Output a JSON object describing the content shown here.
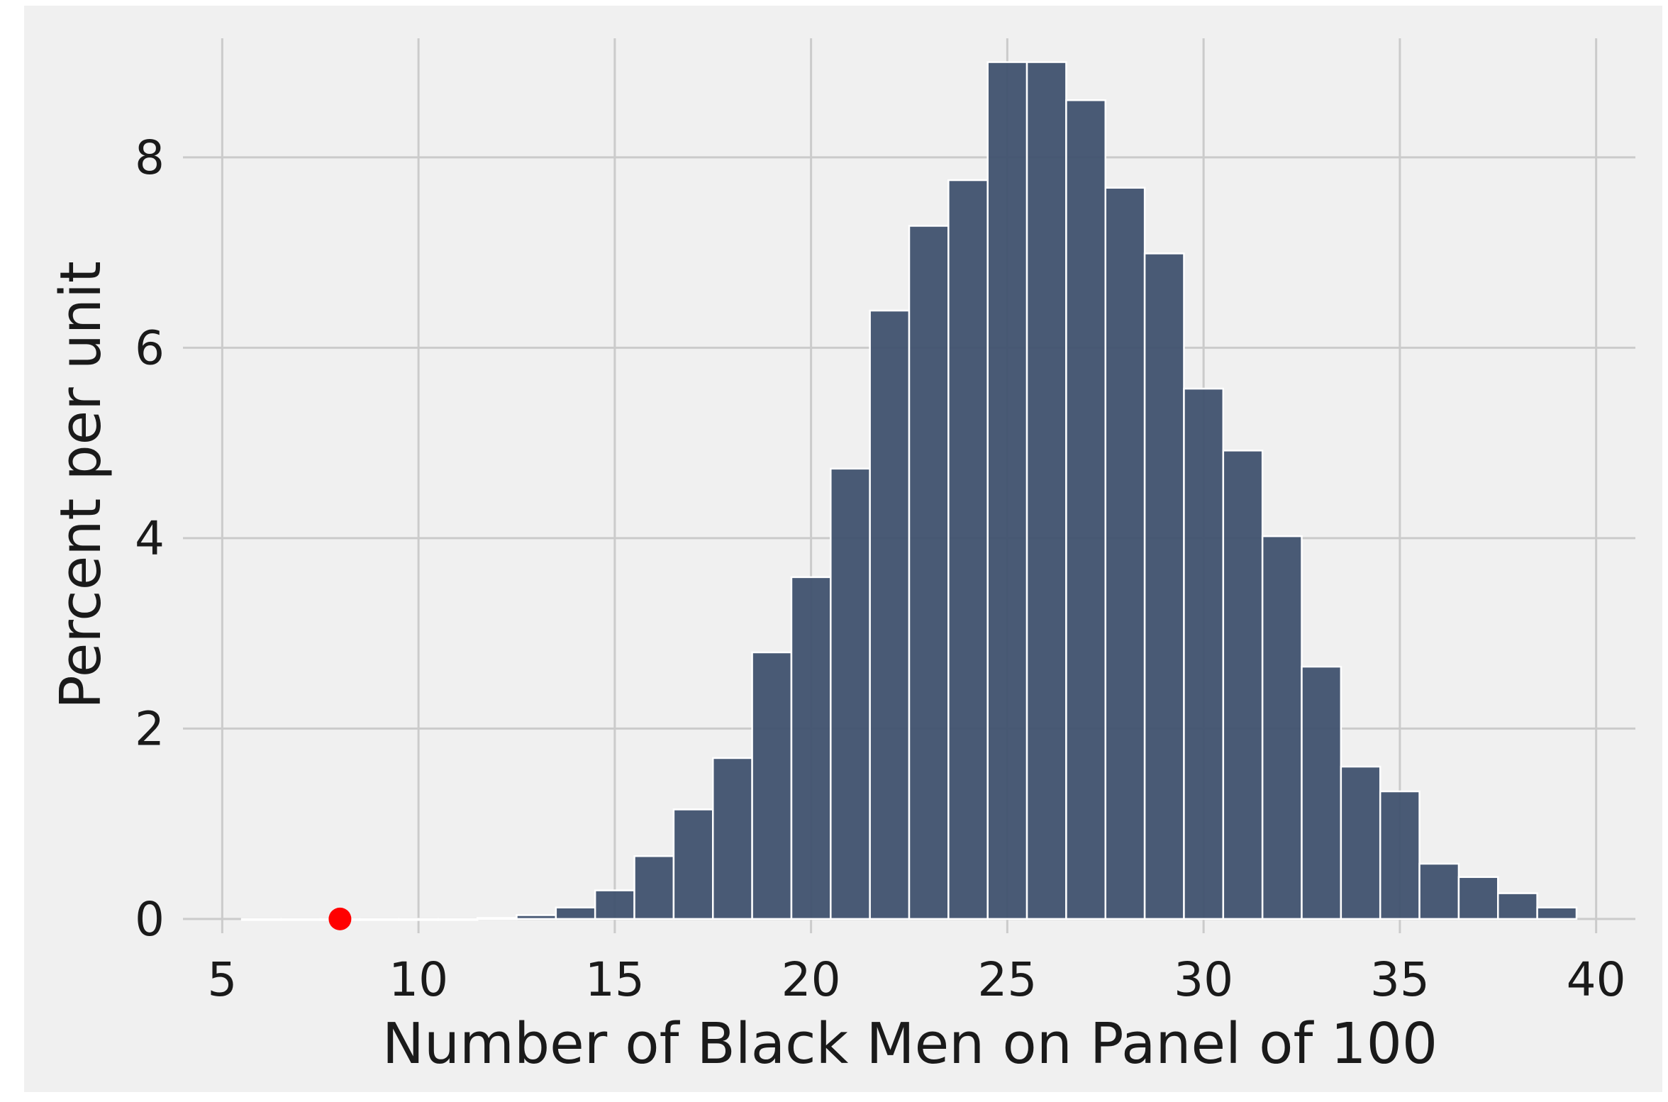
{
  "chart_data": {
    "type": "bar",
    "title": "",
    "xlabel": "Number of Black Men on Panel of 100",
    "ylabel": "Percent per unit",
    "xlim": [
      4,
      41
    ],
    "ylim": [
      -0.15,
      9.25
    ],
    "xticks": [
      5,
      10,
      15,
      20,
      25,
      30,
      35,
      40
    ],
    "xtick_labels": [
      "5",
      "10",
      "15",
      "20",
      "25",
      "30",
      "35",
      "40"
    ],
    "yticks": [
      0,
      2,
      4,
      6,
      8
    ],
    "ytick_labels": [
      "0",
      "2",
      "4",
      "6",
      "8"
    ],
    "grid": true,
    "legend": "none",
    "bins": [
      {
        "start": 5.5,
        "end": 6.5,
        "value": 0.0
      },
      {
        "start": 6.5,
        "end": 7.5,
        "value": 0.0
      },
      {
        "start": 7.5,
        "end": 8.5,
        "value": 0.0
      },
      {
        "start": 8.5,
        "end": 9.5,
        "value": 0.0
      },
      {
        "start": 9.5,
        "end": 10.5,
        "value": 0.0
      },
      {
        "start": 10.5,
        "end": 11.5,
        "value": 0.0
      },
      {
        "start": 11.5,
        "end": 12.5,
        "value": 0.01
      },
      {
        "start": 12.5,
        "end": 13.5,
        "value": 0.04
      },
      {
        "start": 13.5,
        "end": 14.5,
        "value": 0.12
      },
      {
        "start": 14.5,
        "end": 15.5,
        "value": 0.3
      },
      {
        "start": 15.5,
        "end": 16.5,
        "value": 0.66
      },
      {
        "start": 16.5,
        "end": 17.5,
        "value": 1.15
      },
      {
        "start": 17.5,
        "end": 18.5,
        "value": 1.69
      },
      {
        "start": 18.5,
        "end": 19.5,
        "value": 2.8
      },
      {
        "start": 19.5,
        "end": 20.5,
        "value": 3.59
      },
      {
        "start": 20.5,
        "end": 21.5,
        "value": 4.73
      },
      {
        "start": 21.5,
        "end": 22.5,
        "value": 6.39
      },
      {
        "start": 22.5,
        "end": 23.5,
        "value": 7.28
      },
      {
        "start": 23.5,
        "end": 24.5,
        "value": 7.76
      },
      {
        "start": 24.5,
        "end": 25.5,
        "value": 9.0
      },
      {
        "start": 25.5,
        "end": 26.5,
        "value": 9.0
      },
      {
        "start": 26.5,
        "end": 27.5,
        "value": 8.6
      },
      {
        "start": 27.5,
        "end": 28.5,
        "value": 7.68
      },
      {
        "start": 28.5,
        "end": 29.5,
        "value": 6.99
      },
      {
        "start": 29.5,
        "end": 30.5,
        "value": 5.57
      },
      {
        "start": 30.5,
        "end": 31.5,
        "value": 4.92
      },
      {
        "start": 31.5,
        "end": 32.5,
        "value": 4.02
      },
      {
        "start": 32.5,
        "end": 33.5,
        "value": 2.65
      },
      {
        "start": 33.5,
        "end": 34.5,
        "value": 1.6
      },
      {
        "start": 34.5,
        "end": 35.5,
        "value": 1.34
      },
      {
        "start": 35.5,
        "end": 36.5,
        "value": 0.58
      },
      {
        "start": 36.5,
        "end": 37.5,
        "value": 0.44
      },
      {
        "start": 37.5,
        "end": 38.5,
        "value": 0.27
      },
      {
        "start": 38.5,
        "end": 39.5,
        "value": 0.12
      }
    ],
    "observed_point": {
      "x": 8,
      "y": 0
    },
    "colors": {
      "bar": "#42536F",
      "bar_edge": "#ffffff",
      "point": "#FF0000",
      "plot_background": "#F0F0F0",
      "grid": "#CBCBCB"
    }
  }
}
